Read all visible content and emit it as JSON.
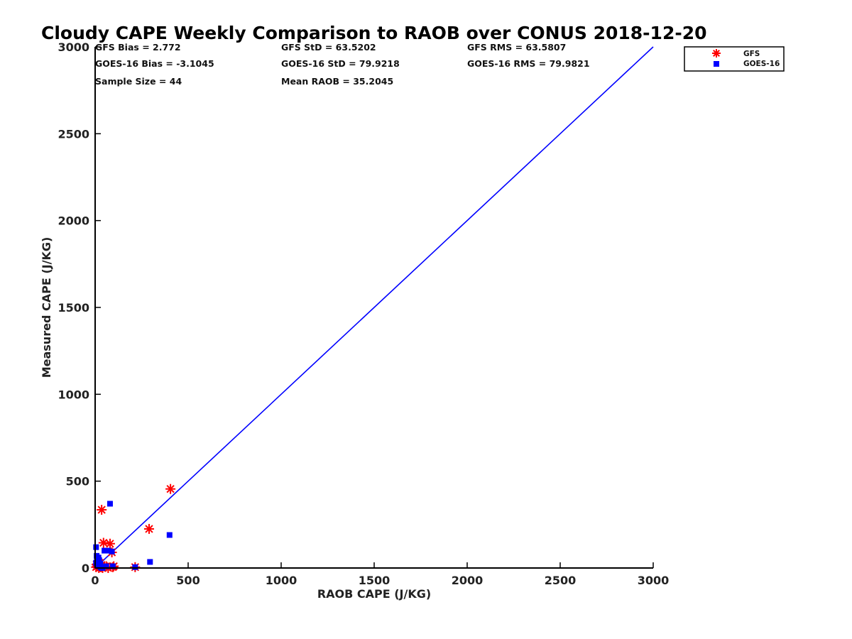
{
  "chart_data": {
    "type": "scatter",
    "title": "Cloudy CAPE Weekly Comparison to RAOB over CONUS 2018-12-20",
    "xlabel": "RAOB CAPE (J/KG)",
    "ylabel": "Measured CAPE (J/KG)",
    "xlim": [
      0,
      3000
    ],
    "ylim": [
      0,
      3000
    ],
    "xticks": [
      0,
      500,
      1000,
      1500,
      2000,
      2500,
      3000
    ],
    "yticks": [
      0,
      500,
      1000,
      1500,
      2000,
      2500,
      3000
    ],
    "grid": false,
    "legend_position": "top-right",
    "stats": [
      [
        "GFS Bias = 2.772",
        "GFS StD = 63.5202",
        "GFS RMS = 63.5807"
      ],
      [
        "GOES-16 Bias = -3.1045",
        "GOES-16 StD = 79.9218",
        "GOES-16 RMS = 79.9821"
      ],
      [
        "Sample Size = 44",
        "Mean RAOB = 35.2045",
        ""
      ]
    ],
    "reference_line": {
      "x": [
        0,
        3000
      ],
      "y": [
        0,
        3000
      ],
      "color": "#0000ff"
    },
    "series": [
      {
        "name": "GFS",
        "marker": "asterisk",
        "color": "#ff0000",
        "x": [
          405,
          35,
          290,
          45,
          80,
          90,
          25,
          5,
          12,
          20,
          30,
          50,
          70,
          95,
          215,
          8,
          15,
          40,
          60,
          100
        ],
        "y": [
          455,
          335,
          225,
          145,
          140,
          90,
          30,
          5,
          10,
          0,
          5,
          10,
          0,
          5,
          5,
          20,
          15,
          0,
          10,
          10
        ]
      },
      {
        "name": "GOES-16",
        "marker": "square",
        "color": "#0000ff",
        "x": [
          80,
          400,
          5,
          10,
          15,
          50,
          70,
          90,
          295,
          95,
          215,
          5,
          10,
          20,
          25,
          30,
          35,
          40,
          8,
          12,
          18,
          22,
          28,
          60
        ],
        "y": [
          370,
          190,
          120,
          60,
          50,
          100,
          100,
          95,
          35,
          10,
          5,
          30,
          15,
          20,
          10,
          5,
          0,
          0,
          70,
          40,
          60,
          45,
          25,
          10
        ]
      }
    ]
  },
  "colors": {
    "axis": "#000000",
    "gfs": "#ff0000",
    "goes": "#0000ff",
    "line": "#0000ff"
  }
}
